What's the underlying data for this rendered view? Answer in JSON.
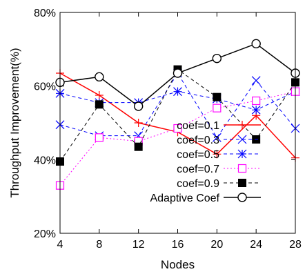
{
  "chart_data": {
    "type": "line",
    "title": "",
    "xlabel": "Nodes",
    "ylabel": "Throughput Improvement(%)",
    "x": [
      4,
      8,
      12,
      16,
      20,
      24,
      28
    ],
    "x_tick_labels": [
      "4",
      "8",
      "12",
      "16",
      "20",
      "24",
      "28"
    ],
    "xlim": [
      4,
      28
    ],
    "ylim": [
      20,
      80
    ],
    "y_ticks": [
      20,
      40,
      60,
      80
    ],
    "y_tick_labels": [
      "20%",
      "40%",
      "60%",
      "80%"
    ],
    "grid": false,
    "legend_position": "bottom-right",
    "series": [
      {
        "name": "coef=0.1",
        "color": "#ff0000",
        "dash": "solid",
        "marker": "plus",
        "values": [
          63.5,
          57.5,
          50.0,
          47.5,
          41.5,
          52.0,
          40.5
        ]
      },
      {
        "name": "coef=0.3",
        "color": "#0000ff",
        "dash": "dashed",
        "marker": "x",
        "values": [
          49.5,
          46.5,
          46.5,
          63.5,
          46.0,
          61.5,
          48.5
        ]
      },
      {
        "name": "coef=0.5",
        "color": "#0000ff",
        "dash": "dashed",
        "marker": "asterisk",
        "values": [
          58.0,
          55.5,
          55.5,
          58.5,
          56.5,
          53.5,
          58.5
        ]
      },
      {
        "name": "coef=0.7",
        "color": "#ff00ff",
        "dash": "dotted",
        "marker": "square-open",
        "values": [
          33.0,
          46.0,
          45.0,
          48.5,
          54.0,
          56.0,
          58.5
        ]
      },
      {
        "name": "coef=0.9",
        "color": "#000000",
        "dash": "dashed",
        "marker": "square-filled",
        "values": [
          39.5,
          55.0,
          43.5,
          64.5,
          57.0,
          45.5,
          61.0
        ]
      },
      {
        "name": "Adaptive Coef",
        "color": "#000000",
        "dash": "solid",
        "marker": "circle-open",
        "values": [
          61.0,
          62.5,
          54.5,
          63.5,
          67.5,
          71.5,
          63.5
        ]
      }
    ]
  }
}
